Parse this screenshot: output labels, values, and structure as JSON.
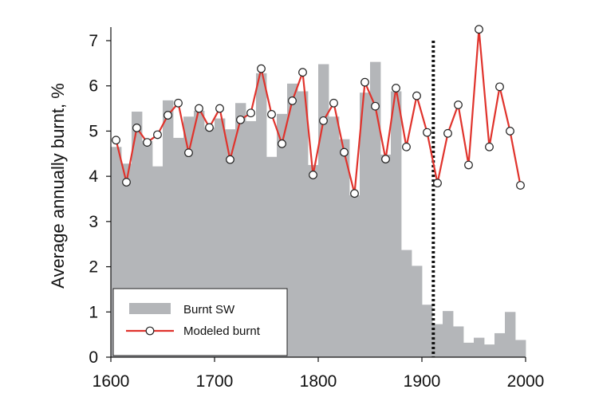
{
  "chart_data": {
    "type": "bar",
    "title": "",
    "xlabel": "",
    "ylabel": "Average annually burnt, %",
    "xlim": [
      1600,
      2000
    ],
    "ylim": [
      0,
      7.5
    ],
    "xticks": [
      "1600",
      "1700",
      "1800",
      "1900",
      "2000"
    ],
    "yticks": [
      "0",
      "1",
      "2",
      "3",
      "4",
      "5",
      "6",
      "7"
    ],
    "grid": false,
    "legend": {
      "position": "bottom-left",
      "entries": [
        "Burnt SW",
        "Modeled burnt"
      ]
    },
    "colors": {
      "bars": "#b4b6b9",
      "line": "#e0332c",
      "marker_fill": "#ffffff",
      "marker_edge": "#222222",
      "vline": "#111111"
    },
    "vline": {
      "x": 1911,
      "style": "dotted"
    },
    "series": [
      {
        "name": "Burnt SW",
        "type": "bar",
        "bin_width": 10,
        "x": [
          1600,
          1610,
          1620,
          1630,
          1640,
          1650,
          1660,
          1670,
          1680,
          1690,
          1700,
          1710,
          1720,
          1730,
          1740,
          1750,
          1760,
          1770,
          1780,
          1790,
          1800,
          1810,
          1820,
          1830,
          1840,
          1850,
          1860,
          1870,
          1880,
          1890,
          1900,
          1910,
          1920,
          1930,
          1940,
          1950,
          1960,
          1970,
          1980,
          1990
        ],
        "values": [
          4.65,
          4.28,
          5.43,
          4.78,
          4.22,
          5.68,
          4.85,
          5.32,
          5.45,
          5.08,
          5.28,
          5.04,
          5.62,
          5.22,
          6.28,
          4.43,
          5.38,
          6.05,
          5.88,
          4.25,
          6.48,
          5.32,
          4.82,
          3.58,
          5.85,
          6.53,
          4.48,
          5.88,
          2.37,
          2.02,
          1.16,
          0.73,
          1.02,
          0.68,
          0.32,
          0.43,
          0.28,
          0.53,
          1.0,
          0.38
        ]
      },
      {
        "name": "Modeled burnt",
        "type": "line",
        "x": [
          1605,
          1615,
          1625,
          1635,
          1645,
          1655,
          1665,
          1675,
          1685,
          1695,
          1705,
          1715,
          1725,
          1735,
          1745,
          1755,
          1765,
          1775,
          1785,
          1795,
          1805,
          1815,
          1825,
          1835,
          1845,
          1855,
          1865,
          1875,
          1885,
          1895,
          1905,
          1915,
          1925,
          1935,
          1945,
          1955,
          1965,
          1975,
          1985,
          1995
        ],
        "values": [
          4.8,
          3.87,
          5.07,
          4.75,
          4.92,
          5.35,
          5.62,
          4.52,
          5.5,
          5.08,
          5.5,
          4.37,
          5.25,
          5.4,
          6.38,
          5.37,
          4.72,
          5.67,
          6.3,
          4.03,
          5.23,
          5.62,
          4.53,
          3.62,
          6.08,
          5.55,
          4.38,
          5.95,
          4.65,
          5.78,
          4.97,
          3.85,
          4.95,
          5.58,
          4.25,
          7.25,
          4.65,
          5.98,
          5.0,
          3.8
        ]
      }
    ]
  }
}
